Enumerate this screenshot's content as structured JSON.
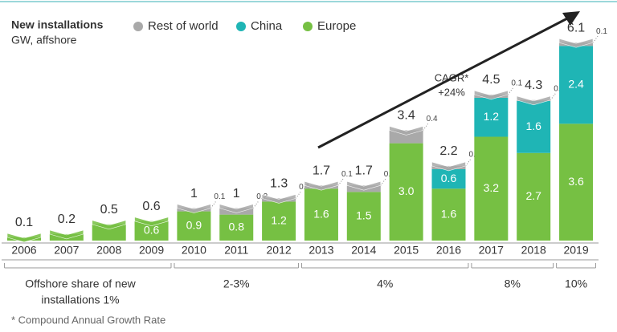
{
  "chart_data": {
    "type": "stacked_bar",
    "title": "New installations",
    "subtitle": "GW, affshore",
    "categories": [
      "2006",
      "2007",
      "2008",
      "2009",
      "2010",
      "2011",
      "2012",
      "2013",
      "2014",
      "2015",
      "2016",
      "2017",
      "2018",
      "2019"
    ],
    "series": [
      {
        "name": "Europe",
        "color": "#76c043",
        "values": [
          0.1,
          0.2,
          0.5,
          0.6,
          0.9,
          0.8,
          1.2,
          1.6,
          1.5,
          3.0,
          1.6,
          3.2,
          2.7,
          3.6
        ],
        "value_labels": [
          null,
          null,
          null,
          "0.6",
          "0.9",
          "0.8",
          "1.2",
          "1.6",
          "1.5",
          "3.0",
          "1.6",
          "3.2",
          "2.7",
          "3.6"
        ]
      },
      {
        "name": "China",
        "color": "#1fb5b5",
        "values": [
          0,
          0,
          0,
          0,
          0,
          0,
          0,
          0,
          0,
          0,
          0.6,
          1.2,
          1.6,
          2.4
        ],
        "value_labels": [
          null,
          null,
          null,
          null,
          null,
          null,
          null,
          null,
          null,
          null,
          "0.6",
          "1.2",
          "1.6",
          "2.4"
        ]
      },
      {
        "name": "Rest of world",
        "color": "#a9a9a9",
        "values": [
          0,
          0,
          0,
          0,
          0.1,
          0.2,
          0.1,
          0.1,
          0.2,
          0.4,
          0.1,
          0.1,
          0.03,
          0.1
        ],
        "value_labels": [
          null,
          null,
          null,
          null,
          "0.1",
          "0.2",
          "0.1",
          "0.1",
          "0.2",
          "0.4",
          "0.1",
          "0.1",
          "0.03",
          "0.1"
        ]
      }
    ],
    "totals": [
      0.1,
      0.2,
      0.5,
      0.6,
      1.0,
      1.0,
      1.3,
      1.7,
      1.7,
      3.4,
      2.2,
      4.5,
      4.3,
      6.1
    ],
    "legend_order": [
      2,
      1,
      0
    ],
    "ylim": [
      0,
      6.5
    ],
    "annotation": [
      "CAGR*",
      "+24%"
    ],
    "share_label": "Offshore share of new",
    "groups": [
      {
        "label": "installations 1%",
        "from": 0,
        "to": 3
      },
      {
        "label": "2-3%",
        "from": 4,
        "to": 6
      },
      {
        "label": "4%",
        "from": 7,
        "to": 10
      },
      {
        "label": "8%",
        "from": 11,
        "to": 12
      },
      {
        "label": "10%",
        "from": 13,
        "to": 13
      }
    ],
    "footnote": "* Compound Annual Growth Rate"
  }
}
